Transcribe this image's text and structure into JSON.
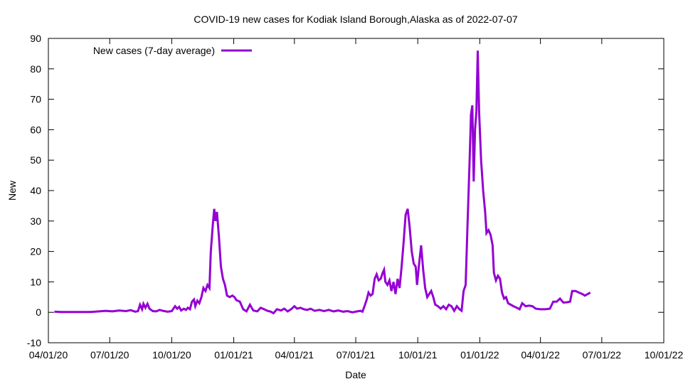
{
  "chart_data": {
    "type": "line",
    "title": "COVID-19 new cases for Kodiak Island Borough,Alaska as of 2022-07-07",
    "xlabel": "Date",
    "ylabel": "New",
    "ylim": [
      -10,
      90
    ],
    "yticks": [
      "-10",
      "0",
      "10",
      "20",
      "30",
      "40",
      "50",
      "60",
      "70",
      "80",
      "90"
    ],
    "xlim": [
      "2020-04-01",
      "2022-10-01"
    ],
    "xticks": [
      {
        "date": "2020-04-01",
        "label": "04/01/20"
      },
      {
        "date": "2020-07-01",
        "label": "07/01/20"
      },
      {
        "date": "2020-10-01",
        "label": "10/01/20"
      },
      {
        "date": "2021-01-01",
        "label": "01/01/21"
      },
      {
        "date": "2021-04-01",
        "label": "04/01/21"
      },
      {
        "date": "2021-07-01",
        "label": "07/01/21"
      },
      {
        "date": "2021-10-01",
        "label": "10/01/21"
      },
      {
        "date": "2022-01-01",
        "label": "01/01/22"
      },
      {
        "date": "2022-04-01",
        "label": "04/01/22"
      },
      {
        "date": "2022-07-01",
        "label": "07/01/22"
      },
      {
        "date": "2022-10-01",
        "label": "10/01/22"
      }
    ],
    "grid": false,
    "legend_position": "top-left",
    "series": [
      {
        "name": "New cases (7-day average)",
        "color": "#9400d3",
        "points": [
          [
            "2020-04-10",
            0.2
          ],
          [
            "2020-04-20",
            0.1
          ],
          [
            "2020-05-01",
            0.1
          ],
          [
            "2020-05-15",
            0.1
          ],
          [
            "2020-06-01",
            0.1
          ],
          [
            "2020-06-15",
            0.3
          ],
          [
            "2020-06-25",
            0.5
          ],
          [
            "2020-07-05",
            0.3
          ],
          [
            "2020-07-15",
            0.6
          ],
          [
            "2020-07-25",
            0.4
          ],
          [
            "2020-08-01",
            0.7
          ],
          [
            "2020-08-08",
            0.2
          ],
          [
            "2020-08-12",
            0.4
          ],
          [
            "2020-08-15",
            2.5
          ],
          [
            "2020-08-18",
            1.0
          ],
          [
            "2020-08-20",
            2.8
          ],
          [
            "2020-08-23",
            1.5
          ],
          [
            "2020-08-26",
            2.8
          ],
          [
            "2020-08-29",
            1.2
          ],
          [
            "2020-09-03",
            0.4
          ],
          [
            "2020-09-08",
            0.3
          ],
          [
            "2020-09-13",
            0.8
          ],
          [
            "2020-09-18",
            0.5
          ],
          [
            "2020-09-25",
            0.2
          ],
          [
            "2020-10-01",
            0.4
          ],
          [
            "2020-10-06",
            2.0
          ],
          [
            "2020-10-09",
            1.2
          ],
          [
            "2020-10-12",
            1.8
          ],
          [
            "2020-10-15",
            0.6
          ],
          [
            "2020-10-19",
            1.2
          ],
          [
            "2020-10-22",
            0.8
          ],
          [
            "2020-10-25",
            1.5
          ],
          [
            "2020-10-28",
            1.0
          ],
          [
            "2020-10-31",
            3.5
          ],
          [
            "2020-11-03",
            4.2
          ],
          [
            "2020-11-05",
            2.0
          ],
          [
            "2020-11-08",
            3.8
          ],
          [
            "2020-11-11",
            3.0
          ],
          [
            "2020-11-14",
            5.0
          ],
          [
            "2020-11-17",
            8.0
          ],
          [
            "2020-11-20",
            7.0
          ],
          [
            "2020-11-23",
            9.0
          ],
          [
            "2020-11-26",
            8.0
          ],
          [
            "2020-11-28",
            20.0
          ],
          [
            "2020-12-01",
            29.0
          ],
          [
            "2020-12-03",
            34.0
          ],
          [
            "2020-12-05",
            30.0
          ],
          [
            "2020-12-07",
            33.0
          ],
          [
            "2020-12-10",
            25.0
          ],
          [
            "2020-12-13",
            15.0
          ],
          [
            "2020-12-16",
            11.0
          ],
          [
            "2020-12-19",
            9.0
          ],
          [
            "2020-12-22",
            5.5
          ],
          [
            "2020-12-26",
            5.0
          ],
          [
            "2020-12-30",
            5.5
          ],
          [
            "2021-01-02",
            5.0
          ],
          [
            "2021-01-05",
            4.0
          ],
          [
            "2021-01-10",
            3.5
          ],
          [
            "2021-01-15",
            1.0
          ],
          [
            "2021-01-20",
            0.3
          ],
          [
            "2021-01-25",
            2.5
          ],
          [
            "2021-01-30",
            0.6
          ],
          [
            "2021-02-05",
            0.3
          ],
          [
            "2021-02-10",
            1.5
          ],
          [
            "2021-02-15",
            1.0
          ],
          [
            "2021-02-20",
            0.5
          ],
          [
            "2021-02-25",
            0.2
          ],
          [
            "2021-03-01",
            -0.3
          ],
          [
            "2021-03-06",
            1.0
          ],
          [
            "2021-03-12",
            0.6
          ],
          [
            "2021-03-17",
            1.2
          ],
          [
            "2021-03-22",
            0.3
          ],
          [
            "2021-03-27",
            1.0
          ],
          [
            "2021-04-01",
            2.0
          ],
          [
            "2021-04-05",
            1.2
          ],
          [
            "2021-04-10",
            1.5
          ],
          [
            "2021-04-15",
            1.0
          ],
          [
            "2021-04-20",
            0.8
          ],
          [
            "2021-04-25",
            1.2
          ],
          [
            "2021-05-01",
            0.5
          ],
          [
            "2021-05-08",
            0.8
          ],
          [
            "2021-05-15",
            0.4
          ],
          [
            "2021-05-22",
            0.8
          ],
          [
            "2021-05-29",
            0.3
          ],
          [
            "2021-06-05",
            0.6
          ],
          [
            "2021-06-12",
            0.2
          ],
          [
            "2021-06-19",
            0.4
          ],
          [
            "2021-06-26",
            0.0
          ],
          [
            "2021-07-03",
            0.3
          ],
          [
            "2021-07-08",
            0.5
          ],
          [
            "2021-07-11",
            0.2
          ],
          [
            "2021-07-14",
            2.0
          ],
          [
            "2021-07-17",
            4.0
          ],
          [
            "2021-07-20",
            6.5
          ],
          [
            "2021-07-23",
            5.5
          ],
          [
            "2021-07-26",
            6.0
          ],
          [
            "2021-07-29",
            11.0
          ],
          [
            "2021-08-01",
            12.5
          ],
          [
            "2021-08-04",
            10.5
          ],
          [
            "2021-08-07",
            11.0
          ],
          [
            "2021-08-10",
            13.0
          ],
          [
            "2021-08-12",
            14.0
          ],
          [
            "2021-08-14",
            10.0
          ],
          [
            "2021-08-17",
            9.0
          ],
          [
            "2021-08-20",
            10.5
          ],
          [
            "2021-08-23",
            7.0
          ],
          [
            "2021-08-26",
            10.0
          ],
          [
            "2021-08-29",
            6.0
          ],
          [
            "2021-09-01",
            11.0
          ],
          [
            "2021-09-04",
            8.0
          ],
          [
            "2021-09-07",
            15.0
          ],
          [
            "2021-09-10",
            23.0
          ],
          [
            "2021-09-13",
            32.0
          ],
          [
            "2021-09-16",
            34.0
          ],
          [
            "2021-09-19",
            28.0
          ],
          [
            "2021-09-22",
            20.0
          ],
          [
            "2021-09-25",
            16.0
          ],
          [
            "2021-09-28",
            15.0
          ],
          [
            "2021-09-30",
            9.0
          ],
          [
            "2021-10-03",
            16.0
          ],
          [
            "2021-10-06",
            22.0
          ],
          [
            "2021-10-09",
            14.0
          ],
          [
            "2021-10-12",
            8.0
          ],
          [
            "2021-10-15",
            5.0
          ],
          [
            "2021-10-18",
            6.0
          ],
          [
            "2021-10-21",
            7.0
          ],
          [
            "2021-10-24",
            5.0
          ],
          [
            "2021-10-27",
            2.5
          ],
          [
            "2021-10-31",
            2.0
          ],
          [
            "2021-11-04",
            1.2
          ],
          [
            "2021-11-08",
            2.0
          ],
          [
            "2021-11-12",
            1.0
          ],
          [
            "2021-11-16",
            2.5
          ],
          [
            "2021-11-20",
            2.0
          ],
          [
            "2021-11-24",
            0.5
          ],
          [
            "2021-11-28",
            2.0
          ],
          [
            "2021-12-02",
            1.0
          ],
          [
            "2021-12-05",
            0.5
          ],
          [
            "2021-12-08",
            7.0
          ],
          [
            "2021-12-11",
            9.0
          ],
          [
            "2021-12-14",
            30.0
          ],
          [
            "2021-12-17",
            50.0
          ],
          [
            "2021-12-19",
            65.0
          ],
          [
            "2021-12-21",
            68.0
          ],
          [
            "2021-12-23",
            43.0
          ],
          [
            "2021-12-25",
            60.0
          ],
          [
            "2021-12-27",
            66.0
          ],
          [
            "2021-12-29",
            86.0
          ],
          [
            "2021-12-31",
            66.0
          ],
          [
            "2022-01-03",
            50.0
          ],
          [
            "2022-01-06",
            40.0
          ],
          [
            "2022-01-09",
            33.0
          ],
          [
            "2022-01-11",
            26.0
          ],
          [
            "2022-01-14",
            27.0
          ],
          [
            "2022-01-17",
            25.5
          ],
          [
            "2022-01-20",
            22.0
          ],
          [
            "2022-01-22",
            13.0
          ],
          [
            "2022-01-25",
            10.5
          ],
          [
            "2022-01-28",
            12.0
          ],
          [
            "2022-01-31",
            11.0
          ],
          [
            "2022-02-03",
            6.5
          ],
          [
            "2022-02-06",
            4.5
          ],
          [
            "2022-02-09",
            5.0
          ],
          [
            "2022-02-12",
            3.0
          ],
          [
            "2022-02-16",
            2.5
          ],
          [
            "2022-02-20",
            2.0
          ],
          [
            "2022-02-25",
            1.5
          ],
          [
            "2022-03-01",
            1.0
          ],
          [
            "2022-03-05",
            3.0
          ],
          [
            "2022-03-10",
            2.0
          ],
          [
            "2022-03-15",
            2.2
          ],
          [
            "2022-03-20",
            2.0
          ],
          [
            "2022-03-25",
            1.2
          ],
          [
            "2022-04-01",
            1.0
          ],
          [
            "2022-04-08",
            1.0
          ],
          [
            "2022-04-15",
            1.2
          ],
          [
            "2022-04-20",
            3.5
          ],
          [
            "2022-04-25",
            3.5
          ],
          [
            "2022-04-30",
            4.5
          ],
          [
            "2022-05-05",
            3.2
          ],
          [
            "2022-05-10",
            3.3
          ],
          [
            "2022-05-15",
            3.5
          ],
          [
            "2022-05-18",
            7.0
          ],
          [
            "2022-05-23",
            7.0
          ],
          [
            "2022-05-28",
            6.5
          ],
          [
            "2022-06-02",
            6.0
          ],
          [
            "2022-06-06",
            5.5
          ],
          [
            "2022-06-10",
            6.0
          ],
          [
            "2022-06-14",
            6.5
          ]
        ]
      }
    ]
  }
}
